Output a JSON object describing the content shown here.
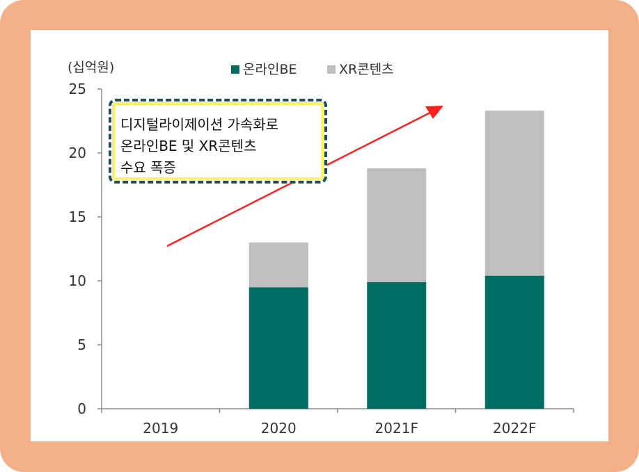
{
  "chart_data": {
    "type": "bar",
    "stacked": true,
    "unit_label": "(십억원)",
    "categories": [
      "2019",
      "2020",
      "2021F",
      "2022F"
    ],
    "series": [
      {
        "name": "온라인BE",
        "color": "#006b60",
        "values": [
          0,
          9.5,
          9.9,
          10.4
        ]
      },
      {
        "name": "XR콘텐츠",
        "color": "#bfbfbf",
        "values": [
          0,
          3.5,
          8.9,
          12.9
        ]
      }
    ],
    "ylim": [
      0,
      25
    ],
    "yticks": [
      0,
      5,
      10,
      15,
      20,
      25
    ],
    "grid": false,
    "legend_position": "top-center",
    "annotation": {
      "lines": [
        "디지털라이제이션 가속화로",
        "온라인BE 및 XR콘텐츠",
        "수요 폭증"
      ],
      "arrow_color": "#ff2020"
    }
  }
}
